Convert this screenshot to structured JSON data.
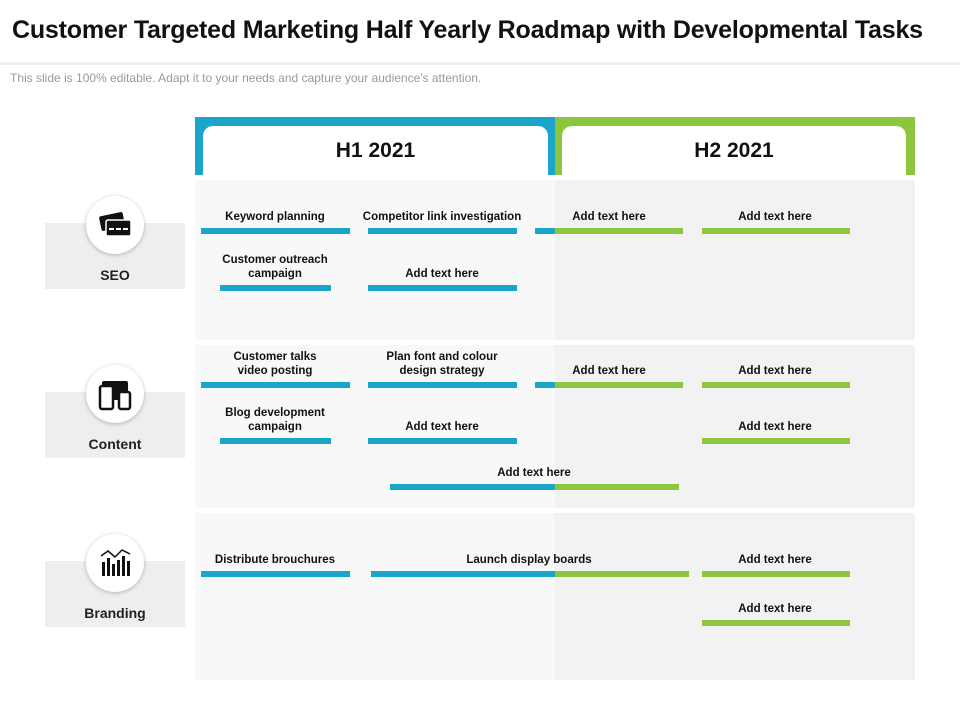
{
  "header": {
    "title": "Customer Targeted Marketing Half Yearly Roadmap with Developmental Tasks",
    "subtitle": "This slide is 100% editable. Adapt it to your needs and capture your audience's attention."
  },
  "columns": [
    "H1 2021",
    "H2 2021"
  ],
  "rows": [
    {
      "label": "SEO",
      "tasks": [
        "Keyword planning",
        "Competitor link investigation",
        "Add text here",
        "Add text here",
        "Customer outreach campaign",
        "Add text here"
      ]
    },
    {
      "label": "Content",
      "tasks": [
        "Customer talks video posting",
        "Plan font and colour design strategy",
        "Add text here",
        "Add text here",
        "Blog development campaign",
        "Add text here",
        "Add text here",
        "Add text here"
      ]
    },
    {
      "label": "Branding",
      "tasks": [
        "Distribute brouchures",
        "Launch display boards",
        "Add text here",
        "Add text here"
      ]
    }
  ]
}
